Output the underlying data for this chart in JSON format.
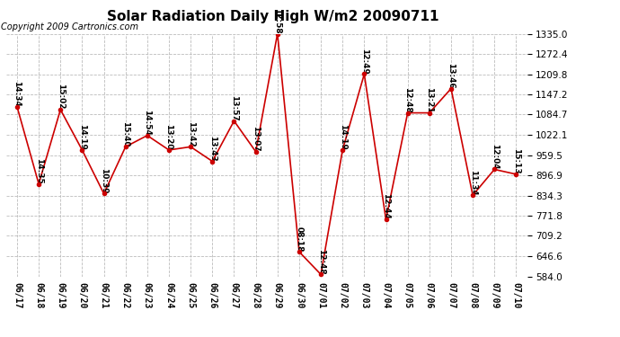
{
  "title": "Solar Radiation Daily High W/m2 20090711",
  "copyright": "Copyright 2009 Cartronics.com",
  "dates": [
    "06/17",
    "06/18",
    "06/19",
    "06/20",
    "06/21",
    "06/22",
    "06/23",
    "06/24",
    "06/25",
    "06/26",
    "06/27",
    "06/28",
    "06/29",
    "06/30",
    "07/01",
    "07/02",
    "07/03",
    "07/04",
    "07/05",
    "07/06",
    "07/07",
    "07/08",
    "07/09",
    "07/10"
  ],
  "values": [
    1109,
    870,
    1100,
    975,
    840,
    985,
    1020,
    975,
    985,
    940,
    1065,
    970,
    1335,
    660,
    590,
    975,
    1210,
    760,
    1090,
    1090,
    1165,
    835,
    915,
    900
  ],
  "labels": [
    "14:34",
    "14:35",
    "15:02",
    "14:19",
    "10:39",
    "15:40",
    "14:54",
    "13:20",
    "13:42",
    "13:43",
    "13:57",
    "13:07",
    "12:58",
    "08:18",
    "12:48",
    "14:19",
    "12:49",
    "12:44",
    "12:48",
    "13:21",
    "13:46",
    "11:34",
    "12:04",
    "15:13"
  ],
  "ylim": [
    584.0,
    1335.0
  ],
  "yticks": [
    584.0,
    646.6,
    709.2,
    771.8,
    834.3,
    896.9,
    959.5,
    1022.1,
    1084.7,
    1147.2,
    1209.8,
    1272.4,
    1335.0
  ],
  "line_color": "#cc0000",
  "marker_color": "#cc0000",
  "bg_color": "#ffffff",
  "grid_color": "#bbbbbb",
  "title_fontsize": 11,
  "label_fontsize": 6.5,
  "copyright_fontsize": 7,
  "xtick_fontsize": 7,
  "ytick_fontsize": 7.5
}
